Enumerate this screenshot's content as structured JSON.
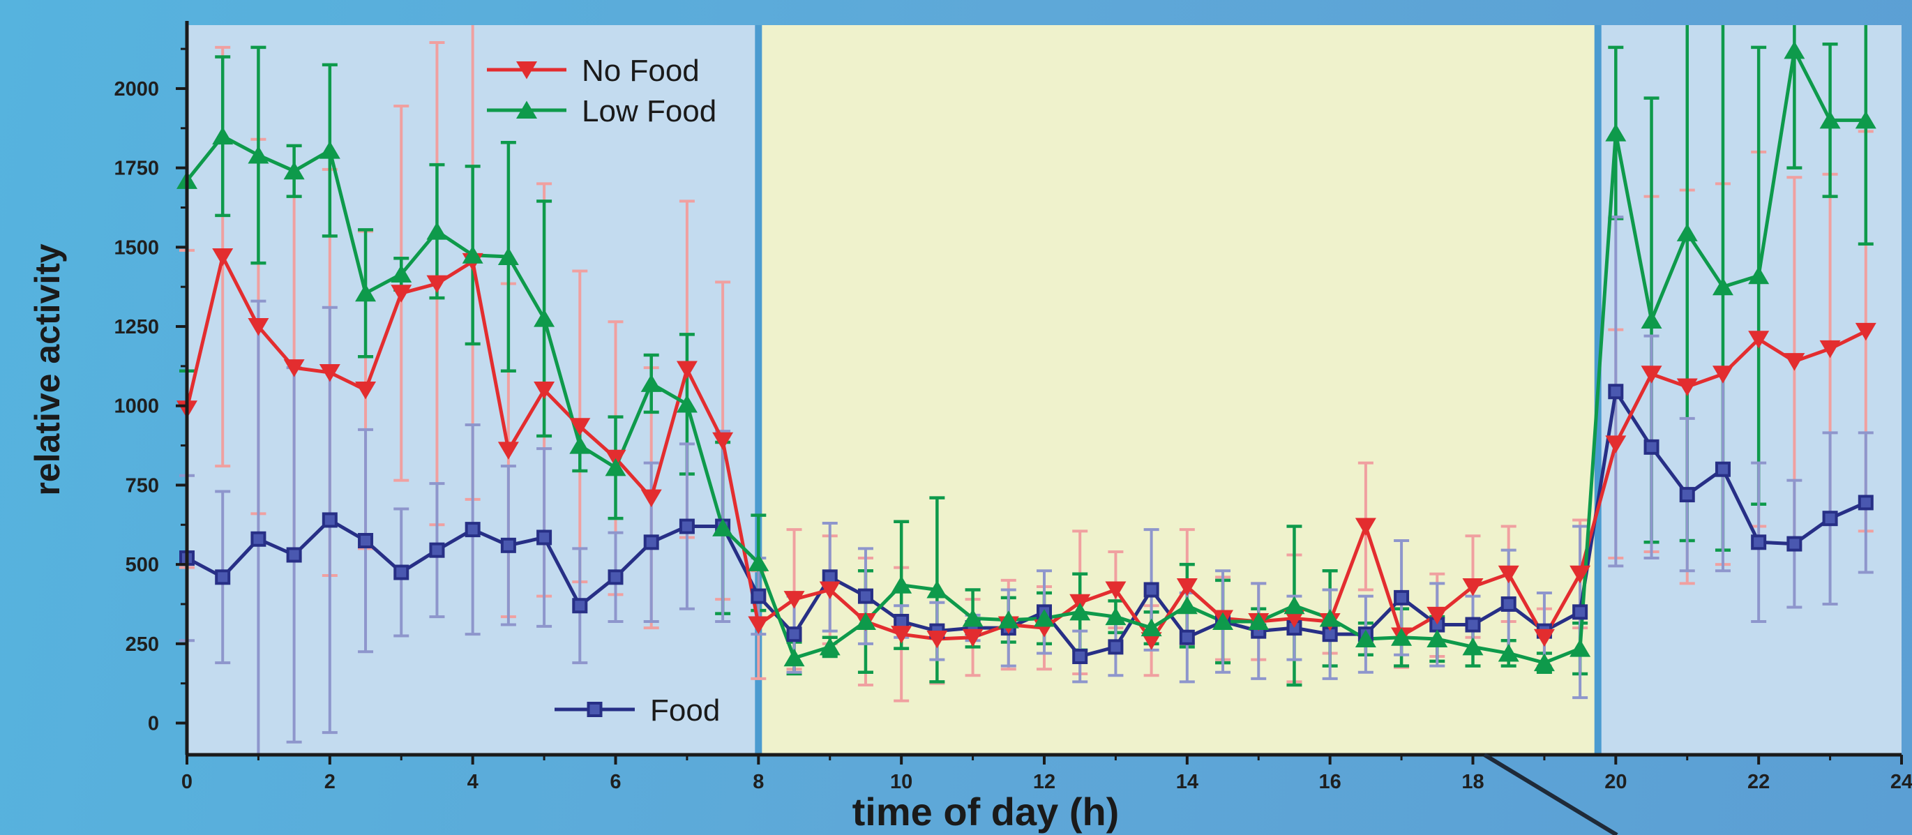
{
  "chart_data": {
    "type": "line",
    "xlabel": "time of day (h)",
    "ylabel": "relative activity",
    "xlim": [
      0,
      24
    ],
    "ylim": [
      -100,
      2200
    ],
    "x_ticks": [
      "0",
      "2",
      "4",
      "6",
      "8",
      "10",
      "12",
      "14",
      "16",
      "18",
      "20",
      "22",
      "24"
    ],
    "y_ticks": [
      "0",
      "250",
      "500",
      "750",
      "1000",
      "1250",
      "1500",
      "1750",
      "2000"
    ],
    "grid": false,
    "phases": [
      {
        "name": "dark",
        "start": 0,
        "end": 8,
        "color": "#c3dbef"
      },
      {
        "name": "light",
        "start": 8,
        "end": 19.75,
        "color": "#eff2cc"
      },
      {
        "name": "dark",
        "start": 19.75,
        "end": 24,
        "color": "#c3dbef"
      }
    ],
    "x": [
      0,
      0.5,
      1,
      1.5,
      2,
      2.5,
      3,
      3.5,
      4,
      4.5,
      5,
      5.5,
      6,
      6.5,
      7,
      7.5,
      8,
      8.5,
      9,
      9.5,
      10,
      10.5,
      11,
      11.5,
      12,
      12.5,
      13,
      13.5,
      14,
      14.5,
      15,
      15.5,
      16,
      16.5,
      17,
      17.5,
      18,
      18.5,
      19,
      19.5,
      20,
      20.5,
      21,
      21.5,
      22,
      22.5,
      23,
      23.5
    ],
    "series": [
      {
        "name": "No Food",
        "marker": "triangle-down",
        "color": "#e32d2f",
        "err_color": "#f0a0a0",
        "values": [
          990,
          1470,
          1250,
          1120,
          1105,
          1050,
          1355,
          1385,
          1455,
          860,
          1050,
          935,
          835,
          710,
          1115,
          890,
          310,
          390,
          420,
          320,
          280,
          265,
          270,
          310,
          300,
          380,
          420,
          260,
          430,
          330,
          320,
          330,
          320,
          620,
          275,
          340,
          430,
          470,
          270,
          470,
          880,
          1100,
          1060,
          1100,
          1210,
          1140,
          1180,
          1235
        ],
        "errors": [
          500,
          660,
          590,
          600,
          640,
          500,
          590,
          760,
          750,
          525,
          650,
          490,
          430,
          410,
          530,
          500,
          170,
          220,
          170,
          200,
          210,
          140,
          120,
          140,
          130,
          225,
          120,
          110,
          180,
          130,
          120,
          200,
          100,
          200,
          100,
          130,
          160,
          150,
          90,
          170,
          360,
          560,
          620,
          600,
          590,
          580,
          550,
          630
        ]
      },
      {
        "name": "Low Food",
        "marker": "triangle-up",
        "color": "#0e9a4b",
        "err_color": "#0e9a4b",
        "values": [
          1710,
          1850,
          1790,
          1740,
          1805,
          1355,
          1415,
          1550,
          1475,
          1470,
          1275,
          875,
          805,
          1070,
          1005,
          615,
          505,
          205,
          240,
          320,
          435,
          420,
          330,
          325,
          330,
          350,
          335,
          300,
          370,
          320,
          320,
          370,
          330,
          265,
          270,
          265,
          240,
          220,
          190,
          235,
          1860,
          1270,
          1545,
          1375,
          1410,
          2120,
          1900,
          1900
        ],
        "errors": [
          600,
          250,
          340,
          80,
          270,
          200,
          50,
          210,
          280,
          360,
          370,
          80,
          160,
          90,
          220,
          270,
          150,
          50,
          30,
          160,
          200,
          290,
          90,
          70,
          80,
          120,
          50,
          50,
          130,
          130,
          40,
          250,
          150,
          50,
          90,
          70,
          60,
          40,
          30,
          80,
          270,
          700,
          970,
          830,
          720,
          370,
          240,
          390
        ]
      },
      {
        "name": "Food",
        "marker": "square",
        "color": "#272f86",
        "err_color": "#8e96cc",
        "values": [
          520,
          460,
          580,
          530,
          640,
          575,
          475,
          545,
          610,
          560,
          585,
          370,
          460,
          570,
          620,
          620,
          400,
          280,
          460,
          400,
          320,
          290,
          300,
          300,
          350,
          210,
          240,
          420,
          270,
          320,
          290,
          300,
          280,
          280,
          395,
          310,
          310,
          375,
          290,
          350,
          1045,
          870,
          720,
          800,
          570,
          565,
          645,
          695
        ],
        "errors": [
          260,
          270,
          750,
          590,
          670,
          350,
          200,
          210,
          330,
          250,
          280,
          180,
          140,
          250,
          260,
          300,
          120,
          120,
          170,
          150,
          50,
          90,
          40,
          120,
          130,
          80,
          90,
          190,
          140,
          160,
          150,
          100,
          140,
          120,
          180,
          130,
          90,
          170,
          120,
          270,
          550,
          350,
          240,
          320,
          250,
          200,
          270,
          220
        ]
      }
    ]
  }
}
